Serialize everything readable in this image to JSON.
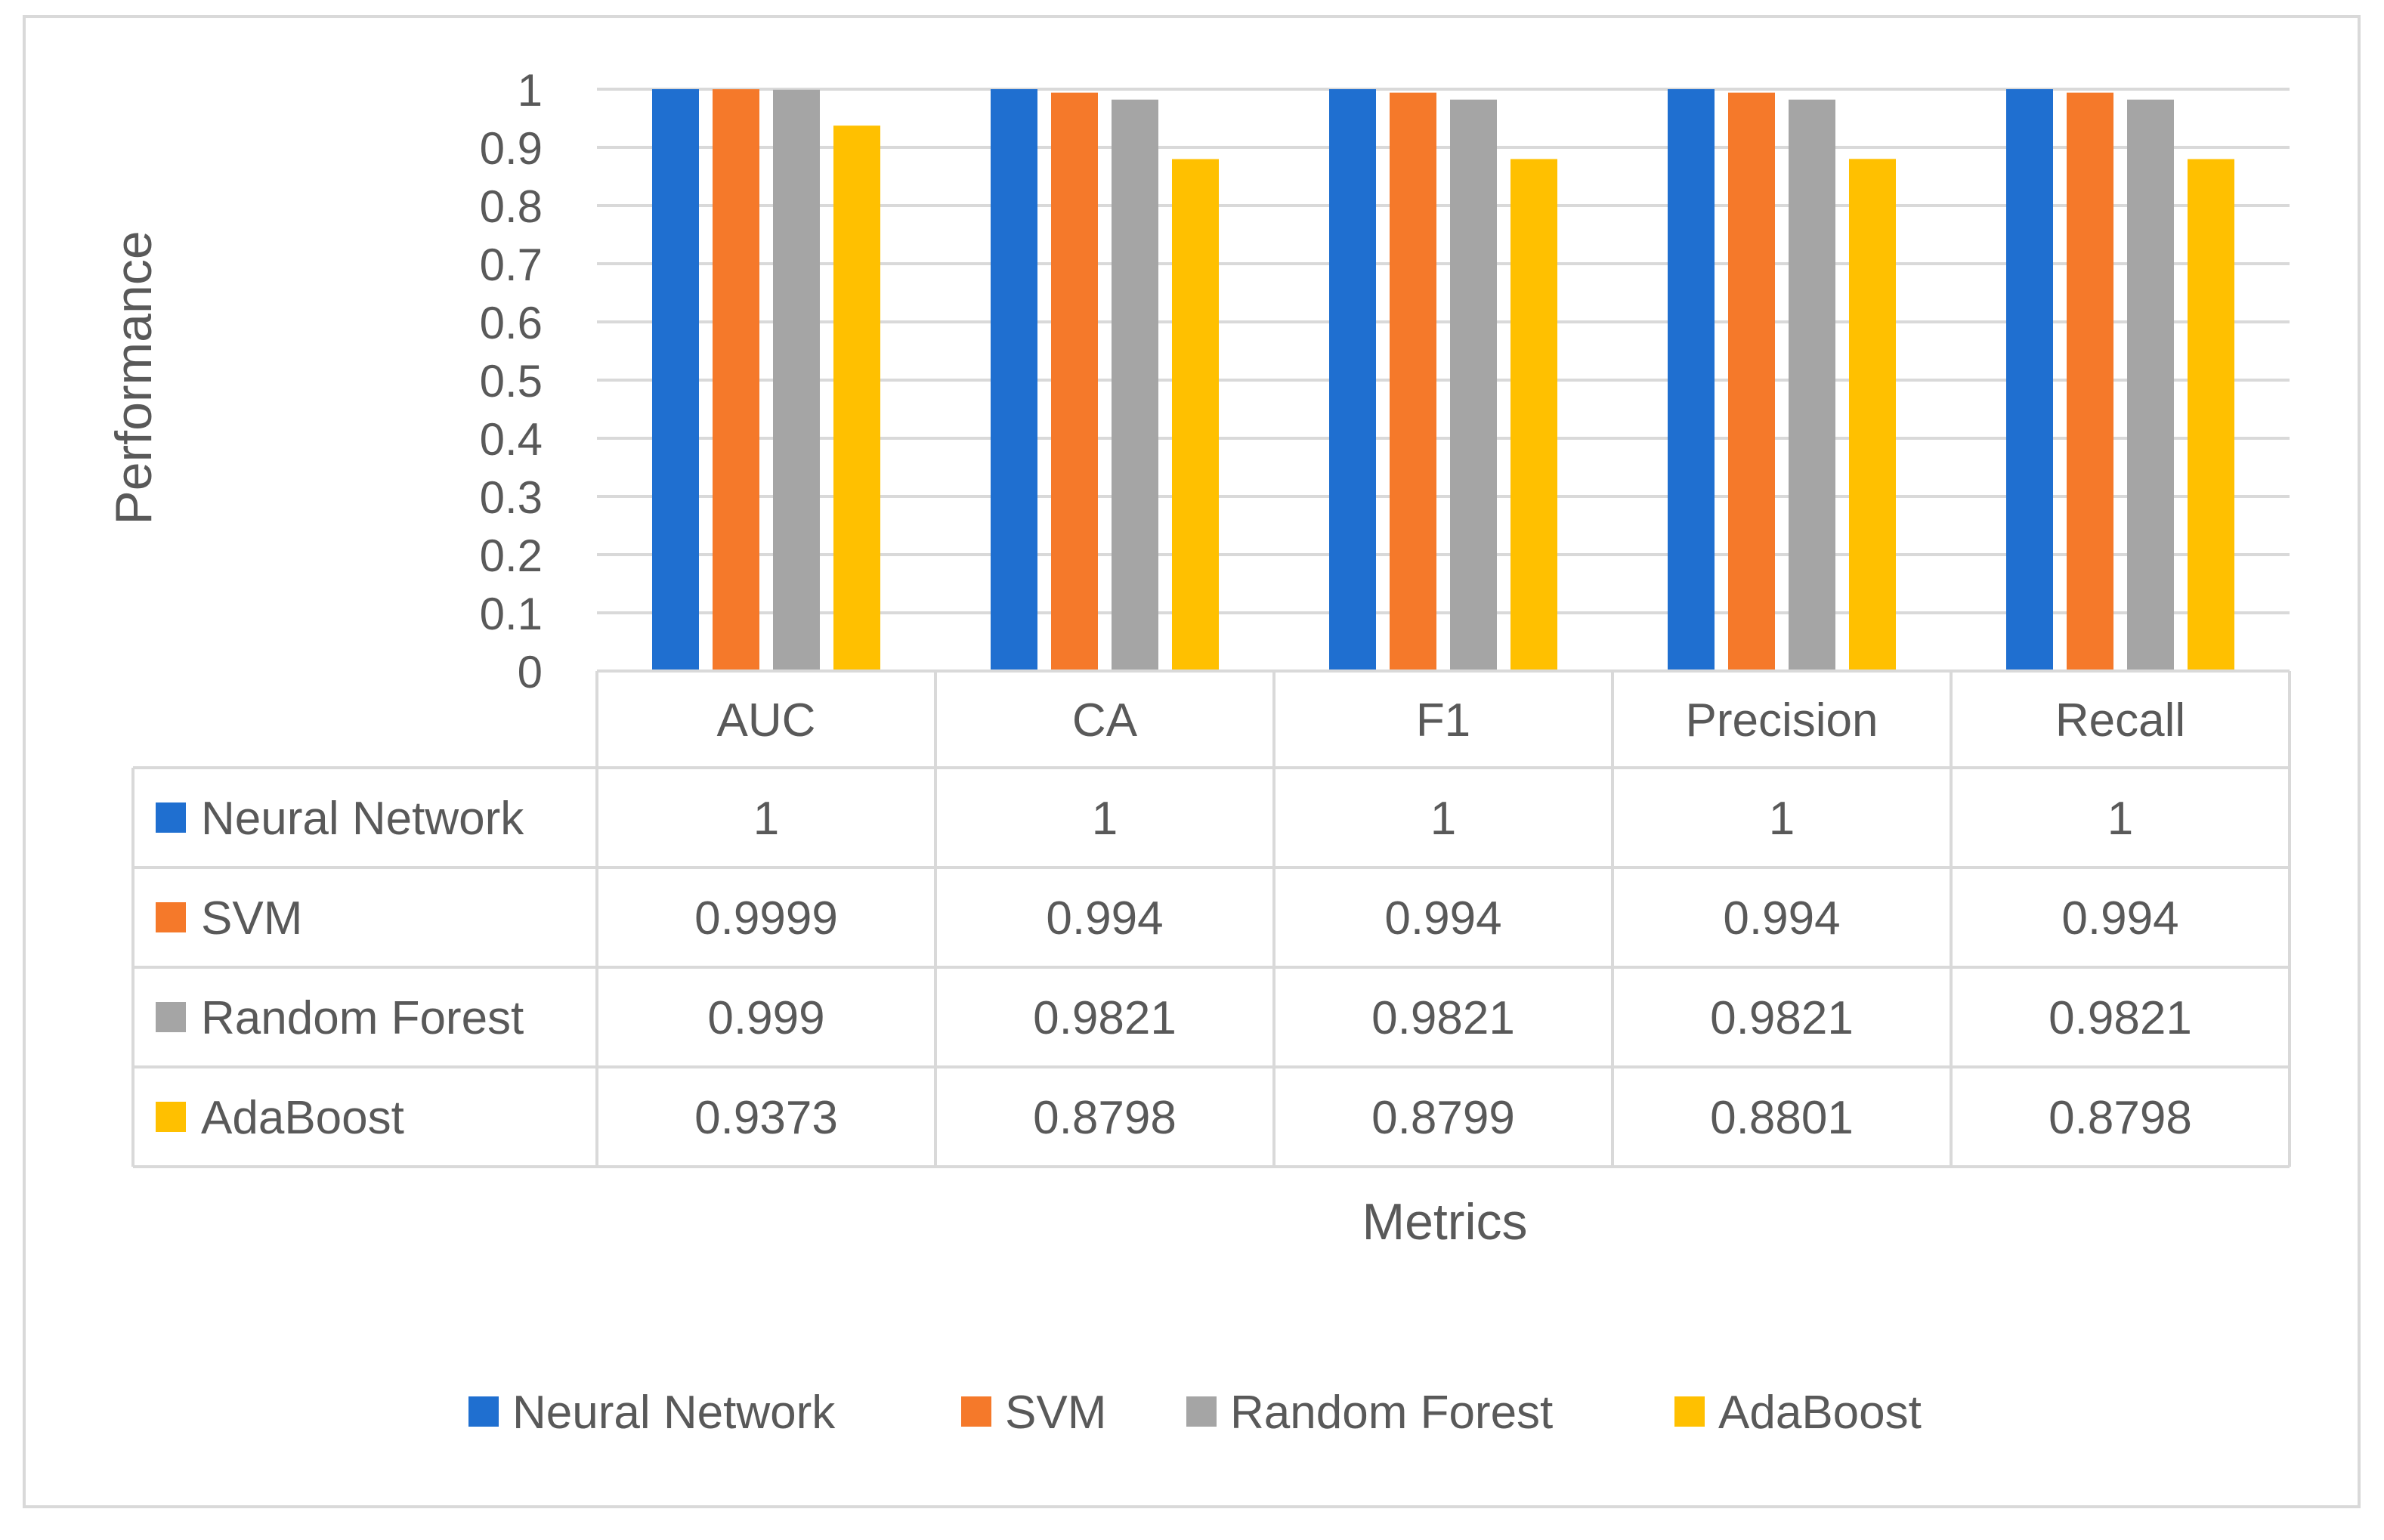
{
  "chart_data": {
    "type": "bar",
    "title": "",
    "xlabel": "Metrics",
    "ylabel": "Performance",
    "ylim": [
      0,
      1
    ],
    "yticks": [
      "0",
      "0.1",
      "0.2",
      "0.3",
      "0.4",
      "0.5",
      "0.6",
      "0.7",
      "0.8",
      "0.9",
      "1"
    ],
    "grid": true,
    "legend_position": "bottom",
    "categories": [
      "AUC",
      "CA",
      "F1",
      "Precision",
      "Recall"
    ],
    "series": [
      {
        "name": "Neural Network",
        "color": "#1f6fd0",
        "values": [
          1,
          1,
          1,
          1,
          1
        ],
        "labels": [
          "1",
          "1",
          "1",
          "1",
          "1"
        ]
      },
      {
        "name": "SVM",
        "color": "#f5792a",
        "values": [
          0.9999,
          0.994,
          0.994,
          0.994,
          0.994
        ],
        "labels": [
          "0.9999",
          "0.994",
          "0.994",
          "0.994",
          "0.994"
        ]
      },
      {
        "name": "Random Forest",
        "color": "#a5a5a5",
        "values": [
          0.999,
          0.9821,
          0.9821,
          0.9821,
          0.9821
        ],
        "labels": [
          "0.999",
          "0.9821",
          "0.9821",
          "0.9821",
          "0.9821"
        ]
      },
      {
        "name": "AdaBoost",
        "color": "#ffc000",
        "values": [
          0.9373,
          0.8798,
          0.8799,
          0.8801,
          0.8798
        ],
        "labels": [
          "0.9373",
          "0.8798",
          "0.8799",
          "0.8801",
          "0.8798"
        ]
      }
    ]
  }
}
